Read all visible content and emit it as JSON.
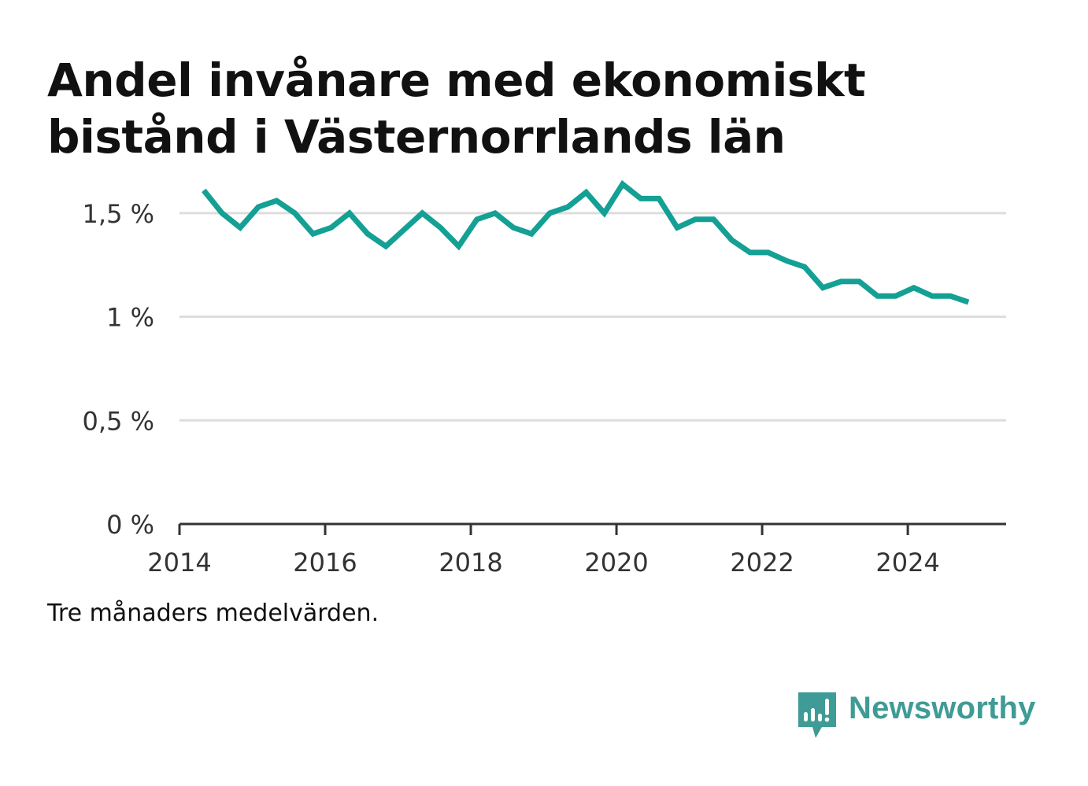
{
  "title_lines": [
    "Andel invånare med ekonomiskt",
    "bistånd i Västernorrlands län"
  ],
  "note": "Tre månaders medelvärden.",
  "brand": {
    "name": "Newsworthy",
    "color": "#3f9b95",
    "icon": "newsworthy-logo-icon"
  },
  "colors": {
    "line": "#14a094",
    "grid": "#dddddd",
    "axis": "#333333",
    "tick_text": "#333333"
  },
  "chart_data": {
    "type": "line",
    "title": "Andel invånare med ekonomiskt bistånd i Västernorrlands län",
    "xlabel": "",
    "ylabel": "",
    "xlim": [
      2014.0,
      2025.35
    ],
    "ylim": [
      0,
      1.75
    ],
    "x_ticks": [
      2014,
      2016,
      2018,
      2020,
      2022,
      2024
    ],
    "x_tick_labels": [
      "2014",
      "2016",
      "2018",
      "2020",
      "2022",
      "2024"
    ],
    "y_ticks": [
      0,
      0.5,
      1,
      1.5
    ],
    "y_tick_labels": [
      "0 %",
      "0,5 %",
      "1 %",
      "1,5 %"
    ],
    "grid": true,
    "series": [
      {
        "name": "",
        "x": [
          "2014-05",
          "2014-08",
          "2014-11",
          "2015-02",
          "2015-05",
          "2015-08",
          "2015-11",
          "2016-02",
          "2016-05",
          "2016-08",
          "2016-11",
          "2017-02",
          "2017-05",
          "2017-08",
          "2017-11",
          "2018-02",
          "2018-05",
          "2018-08",
          "2018-11",
          "2019-02",
          "2019-05",
          "2019-08",
          "2019-11",
          "2020-02",
          "2020-05",
          "2020-08",
          "2020-11",
          "2021-02",
          "2021-05",
          "2021-08",
          "2021-11",
          "2022-02",
          "2022-05",
          "2022-08",
          "2022-11",
          "2023-02",
          "2023-05",
          "2023-08",
          "2023-11",
          "2024-02",
          "2024-05",
          "2024-08",
          "2024-11"
        ],
        "values": [
          1.61,
          1.5,
          1.43,
          1.53,
          1.56,
          1.5,
          1.4,
          1.43,
          1.5,
          1.4,
          1.34,
          1.42,
          1.5,
          1.43,
          1.34,
          1.47,
          1.5,
          1.43,
          1.4,
          1.5,
          1.53,
          1.6,
          1.5,
          1.64,
          1.57,
          1.57,
          1.43,
          1.47,
          1.47,
          1.37,
          1.31,
          1.31,
          1.27,
          1.24,
          1.14,
          1.17,
          1.17,
          1.1,
          1.1,
          1.14,
          1.1,
          1.1,
          1.07
        ]
      }
    ]
  }
}
